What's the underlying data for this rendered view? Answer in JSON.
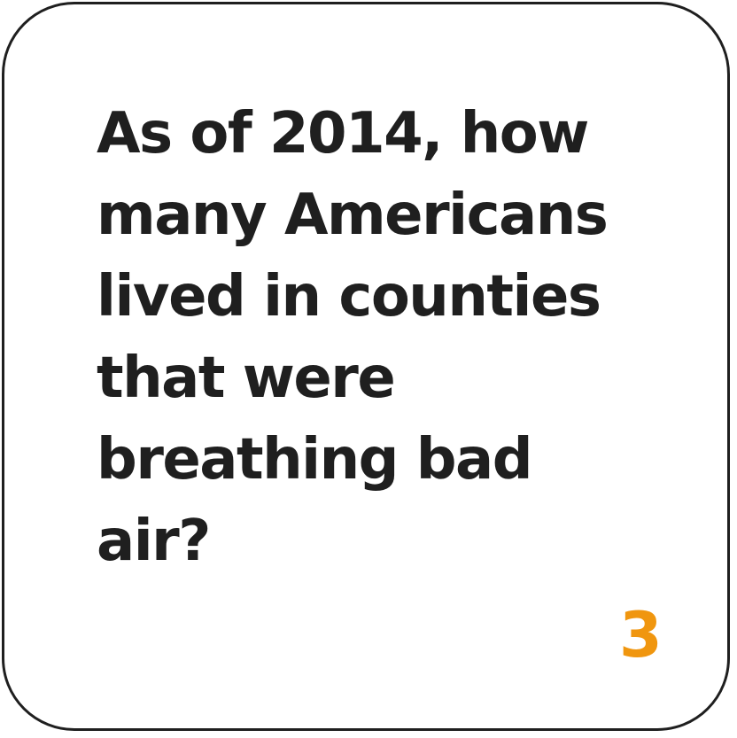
{
  "card": {
    "question_lines": [
      "As of 2014, how",
      "many Americans",
      "lived in counties",
      "that were",
      "breathing bad",
      "air?"
    ],
    "number": "3",
    "colors": {
      "text": "#1f1f1f",
      "number": "#f0960f",
      "border": "#1f1f1f",
      "background": "#ffffff"
    }
  }
}
